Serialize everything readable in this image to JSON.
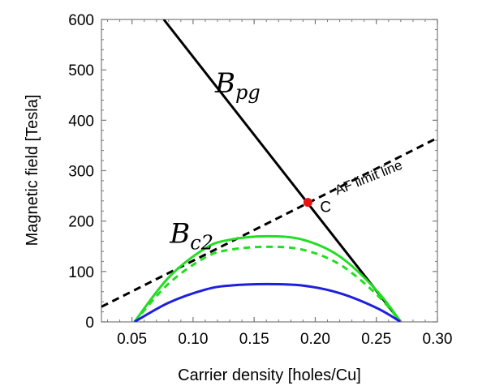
{
  "chart_data": {
    "type": "line",
    "title": "",
    "xlabel": "Carrier density [holes/Cu]",
    "ylabel": "Magnetic field [Tesla]",
    "xlim": [
      0.025,
      0.3
    ],
    "ylim": [
      0,
      600
    ],
    "x_ticks": [
      "0.05",
      "0.10",
      "0.15",
      "0.20",
      "0.25",
      "0.30"
    ],
    "y_ticks": [
      "0",
      "100",
      "200",
      "300",
      "400",
      "500",
      "600"
    ],
    "grid": false,
    "series": [
      {
        "name": "B_pg",
        "color": "#000000",
        "style": "solid",
        "x": [
          0.076,
          0.27
        ],
        "y": [
          600,
          0
        ]
      },
      {
        "name": "AF limit line",
        "color": "#000000",
        "style": "dashed",
        "x": [
          0.025,
          0.3
        ],
        "y": [
          30,
          365
        ]
      },
      {
        "name": "",
        "color": "#22dd22",
        "style": "solid",
        "x": [
          0.052,
          0.08,
          0.11,
          0.13,
          0.16,
          0.19,
          0.22,
          0.25,
          0.27
        ],
        "y": [
          0,
          88,
          146,
          163,
          170,
          163,
          130,
          63,
          0
        ]
      },
      {
        "name": "",
        "color": "#22dd22",
        "style": "dashed",
        "x": [
          0.052,
          0.08,
          0.11,
          0.13,
          0.16,
          0.19,
          0.22,
          0.25,
          0.27
        ],
        "y": [
          0,
          76,
          128,
          143,
          149,
          143,
          114,
          55,
          0
        ]
      },
      {
        "name": "",
        "color": "#1f1fe0",
        "style": "solid",
        "x": [
          0.052,
          0.08,
          0.11,
          0.13,
          0.16,
          0.19,
          0.22,
          0.25,
          0.27
        ],
        "y": [
          0,
          38,
          64,
          72,
          75,
          72,
          57,
          28,
          0
        ]
      }
    ],
    "points": [
      {
        "label": "C",
        "x": 0.194,
        "y": 237,
        "color": "#ee1111"
      }
    ],
    "annotations": [
      {
        "text": "B",
        "sub": "pg",
        "x": 0.118,
        "y": 455
      },
      {
        "text": "B",
        "sub": "c2",
        "x": 0.081,
        "y": 157
      },
      {
        "text": "AF limit line",
        "x": 0.245,
        "y": 278
      }
    ]
  }
}
